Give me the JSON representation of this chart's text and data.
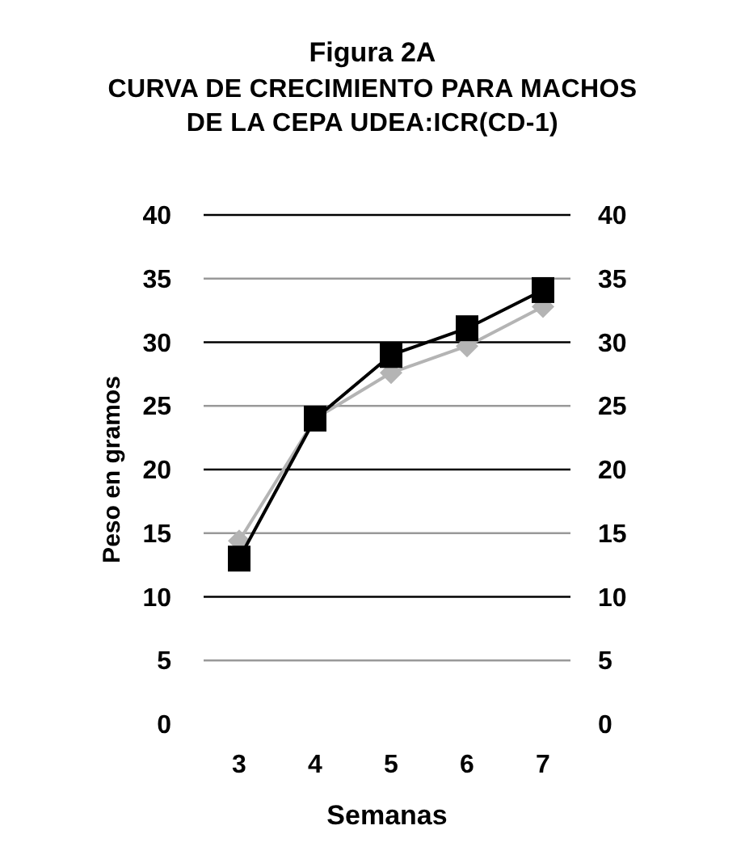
{
  "chart_data": {
    "type": "line",
    "title": "Figura 2A",
    "subtitle": "CURVA DE CRECIMIENTO PARA MACHOS DE LA CEPA UDEA:ICR(CD-1)",
    "xlabel": "Semanas",
    "ylabel": "Peso en gramos",
    "categories": [
      "3",
      "4",
      "5",
      "6",
      "7"
    ],
    "series": [
      {
        "color": "#b4b4b4",
        "marker": "diamond",
        "values": [
          14.4,
          24,
          27.6,
          29.7,
          32.8
        ]
      },
      {
        "color": "#000000",
        "marker": "square",
        "values": [
          13,
          24,
          29,
          31.1,
          34.1
        ]
      }
    ],
    "ylim": [
      0,
      40
    ],
    "yticks": [
      0,
      5,
      10,
      15,
      20,
      25,
      30,
      35,
      40
    ],
    "y2lim": [
      0,
      40
    ],
    "y2ticks": [
      0,
      5,
      10,
      15,
      20,
      25,
      30,
      35,
      40
    ],
    "grid": "y",
    "line_style": "solid"
  }
}
